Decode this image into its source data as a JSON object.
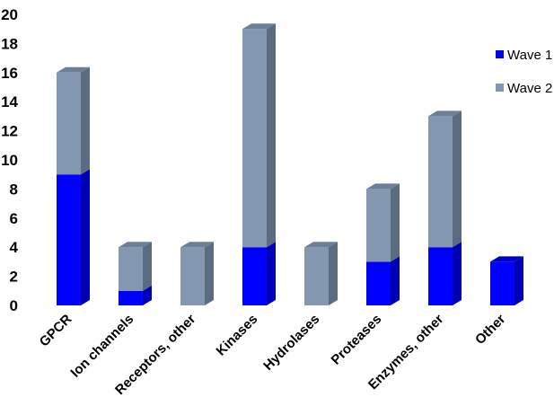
{
  "chart_data": {
    "type": "bar",
    "stacked": true,
    "three_d": true,
    "categories": [
      "GPCR",
      "Ion channels",
      "Receptors, other",
      "Kinases",
      "Hydrolases",
      "Proteases",
      "Enzymes, other",
      "Other"
    ],
    "series": [
      {
        "name": "Wave 1",
        "values": [
          9,
          1,
          0,
          4,
          0,
          3,
          4,
          3
        ],
        "color": "#0000ff"
      },
      {
        "name": "Wave 2",
        "values": [
          7,
          3,
          4,
          15,
          4,
          5,
          9,
          0
        ],
        "color": "#8497b0"
      }
    ],
    "ylim": [
      0,
      20
    ],
    "yticks": [
      0,
      2,
      4,
      6,
      8,
      10,
      12,
      14,
      16,
      18,
      20
    ],
    "grid": false,
    "legend": "right",
    "title": "",
    "xlabel": "",
    "ylabel": ""
  }
}
